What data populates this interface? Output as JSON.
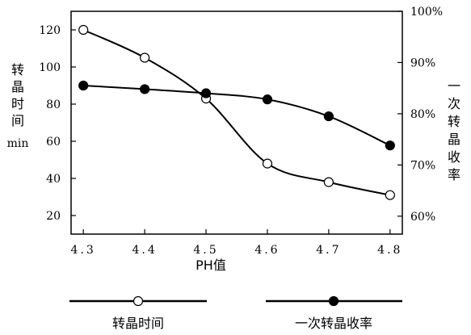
{
  "chart_data": {
    "type": "line",
    "title": "",
    "xlabel": "PH值",
    "x": [
      4.3,
      4.4,
      4.5,
      4.6,
      4.7,
      4.8
    ],
    "x_tick_labels": [
      "4.3",
      "4.4",
      "4.5",
      "4.6",
      "4.7",
      "4.8"
    ],
    "xlim": [
      4.28,
      4.82
    ],
    "y_left": {
      "label_chars": [
        "转",
        "晶",
        "时",
        "间"
      ],
      "unit": "min",
      "ylim": [
        10,
        130
      ],
      "ticks": [
        20,
        40,
        60,
        80,
        100,
        120
      ],
      "tick_labels": [
        "20",
        "40",
        "60",
        "80",
        "100",
        "120"
      ]
    },
    "y_right": {
      "label_chars": [
        "一",
        "次",
        "转",
        "晶",
        "收",
        "率"
      ],
      "ylim": [
        56.5,
        100
      ],
      "ticks": [
        60,
        70,
        80,
        90,
        100
      ],
      "tick_labels": [
        "60%",
        "70%",
        "80%",
        "90%",
        "100%"
      ]
    },
    "series": [
      {
        "name": "转晶时间",
        "axis": "left",
        "marker": "open-circle",
        "values": [
          120,
          105,
          83,
          48,
          38,
          31
        ]
      },
      {
        "name": "一次转晶收率",
        "axis": "right",
        "marker": "filled-circle",
        "values": [
          85.5,
          84.8,
          84.0,
          82.8,
          79.5,
          73.8
        ]
      }
    ],
    "grid": false,
    "legend_position": "bottom"
  }
}
